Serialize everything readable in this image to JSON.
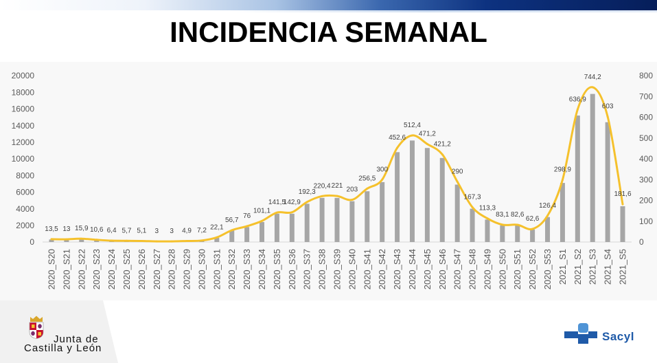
{
  "chart_data": {
    "type": "bar",
    "title": "INCIDENCIA SEMANAL",
    "xlabel": "",
    "ylabel": "",
    "categories": [
      "2020_S20",
      "2020_S21",
      "2020_S22",
      "2020_S23",
      "2020_S24",
      "2020_S25",
      "2020_S26",
      "2020_S27",
      "2020_S28",
      "2020_S29",
      "2020_S30",
      "2020_S31",
      "2020_S32",
      "2020_S33",
      "2020_S34",
      "2020_S35",
      "2020_S36",
      "2020_S37",
      "2020_S38",
      "2020_S39",
      "2020_S40",
      "2020_S41",
      "2020_S42",
      "2020_S43",
      "2020_S44",
      "2020_S45",
      "2020_S46",
      "2020_S47",
      "2020_S48",
      "2020_S49",
      "2020_S50",
      "2020_S51",
      "2020_S52",
      "2020_S53",
      "2021_S1",
      "2021_S2",
      "2021_S3",
      "2021_S4",
      "2021_S5"
    ],
    "series": [
      {
        "type": "bar",
        "values": [
          300,
          300,
          400,
          300,
          200,
          100,
          100,
          100,
          100,
          100,
          200,
          500,
          1400,
          1800,
          2400,
          3400,
          3400,
          4600,
          5300,
          5300,
          4900,
          6100,
          7200,
          10800,
          12200,
          11300,
          10100,
          6900,
          4000,
          2700,
          2000,
          2000,
          1500,
          3000,
          7100,
          15200,
          17800,
          14400,
          4300
        ]
      },
      {
        "type": "line",
        "secondary_axis": true,
        "values": [
          13.5,
          13,
          15.9,
          10.6,
          6.4,
          5.7,
          5.1,
          3,
          3,
          4.9,
          7.2,
          22.1,
          56.7,
          76,
          101.1,
          141.5,
          142.9,
          192.3,
          220.4,
          221,
          203,
          256.5,
          300,
          452.6,
          512.4,
          471.2,
          421.2,
          290,
          167.3,
          113.3,
          83.1,
          82.6,
          62.6,
          126.4,
          298.9,
          636.9,
          744.2,
          603,
          181.6
        ],
        "data_labels": [
          "13,5",
          "13",
          "15,9",
          "10,6",
          "6,4",
          "5,7",
          "5,1",
          "3",
          "3",
          "4,9",
          "7,2",
          "22,1",
          "56,7",
          "76",
          "101,1",
          "141,5",
          "142,9",
          "192,3",
          "220,4",
          "221",
          "203",
          "256,5",
          "300",
          "452,6",
          "512,4",
          "471,2",
          "421,2",
          "290",
          "167,3",
          "113,3",
          "83,1",
          "82,6",
          "62,6",
          "126,4",
          "298,9",
          "636,9",
          "744,2",
          "603",
          "181,6"
        ]
      }
    ],
    "y_left": {
      "range": [
        0,
        20000
      ],
      "ticks": [
        0,
        2000,
        4000,
        6000,
        8000,
        10000,
        12000,
        14000,
        16000,
        18000,
        20000
      ]
    },
    "y_right": {
      "range": [
        0,
        800
      ],
      "ticks": [
        0,
        100,
        200,
        300,
        400,
        500,
        600,
        700,
        800
      ]
    },
    "grid": false,
    "legend": false
  },
  "logos": {
    "junta_line1": "Junta de",
    "junta_line2": "Castilla y León",
    "sacyl": "Sacyl"
  },
  "icons": {
    "junta": "coat-of-arms-icon",
    "sacyl": "sacyl-cross-icon"
  },
  "colors": {
    "bars": "#a6a6a6",
    "line": "#f5c12c",
    "header_blue": "#0d3280",
    "sacyl_blue": "#1f5aa8"
  }
}
